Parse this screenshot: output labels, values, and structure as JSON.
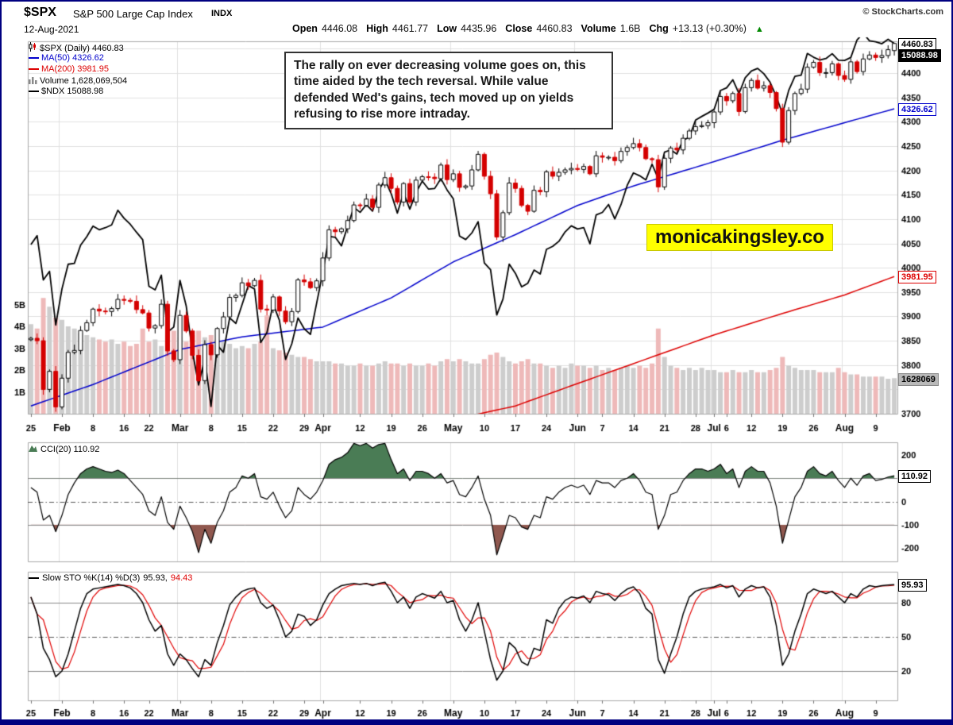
{
  "meta": {
    "symbol": "$SPX",
    "symbol_desc": "S&P 500 Large Cap Index",
    "exchange": "INDX",
    "copyright": "© StockCharts.com",
    "date": "12-Aug-2021"
  },
  "quote": {
    "open_label": "Open",
    "open_value": "4446.08",
    "high_label": "High",
    "high_value": "4461.77",
    "low_label": "Low",
    "low_value": "4435.96",
    "close_label": "Close",
    "close_value": "4460.83",
    "volume_label": "Volume",
    "volume_value": "1.6B",
    "chg_label": "Chg",
    "chg_value": "+13.13 (+0.30%)",
    "arrow": "▲"
  },
  "legend": {
    "spx": "$SPX (Daily) 4460.83",
    "ma50": "MA(50) 4326.62",
    "ma200": "MA(200) 3981.95",
    "volume": "Volume 1,628,069,504",
    "ndx": "$NDX 15088.98"
  },
  "annotation": {
    "text": "The rally on ever decreasing volume goes on, this time aided by the tech reversal. While value defended Wed's gains, tech moved up on yields refusing to rise more intraday."
  },
  "watermark": {
    "text": "monicakingsley.co"
  },
  "boxes": {
    "last": "4460.83",
    "ndx_last": "15088.98",
    "ma50": "4326.62",
    "ma200": "3981.95",
    "volume": "1628069",
    "cci": "110.92",
    "sto": "95.93"
  },
  "cci_panel": {
    "legend": "CCI(20) 110.92"
  },
  "sto_panel": {
    "label": "Slow STO %K(14) %D(3)",
    "k": "95.93,",
    "d": "94.43"
  },
  "colors": {
    "ma50": "#0000cc",
    "ma200": "#dd0000",
    "ndx": "#000000",
    "candle_down": "#d40000",
    "candle_up_fill": "#ffffff",
    "volume_up": "#cdcdcd",
    "volume_down": "#eeb9b9",
    "cci_pos": "#4a7c55",
    "cci_neg": "#90584f",
    "sto_k": "#000000",
    "sto_d": "#e00000",
    "watermark_bg": "#ffff00",
    "chg_arrow": "#008800",
    "border": "#000080",
    "grid": "#e0e0e0"
  },
  "chart_data": {
    "type": "candlestick",
    "title": "$SPX (Daily)",
    "points": 140,
    "first_open": 3852,
    "last_ohlc": {
      "open": 4446.08,
      "high": 4461.77,
      "low": 4435.96,
      "close": 4460.83
    },
    "close": [
      3855,
      3850,
      3750,
      3787,
      3714,
      3773,
      3826,
      3830,
      3871,
      3887,
      3915,
      3911,
      3910,
      3916,
      3935,
      3933,
      3931,
      3914,
      3907,
      3876,
      3881,
      3925,
      3829,
      3811,
      3902,
      3870,
      3820,
      3768,
      3842,
      3821,
      3875,
      3899,
      3939,
      3943,
      3969,
      3963,
      3974,
      3915,
      3913,
      3940,
      3911,
      3889,
      3910,
      3975,
      3971,
      3959,
      3973,
      4020,
      4078,
      4074,
      4080,
      4097,
      4129,
      4128,
      4141,
      4124,
      4170,
      4185,
      4163,
      4135,
      4173,
      4135,
      4180,
      4187,
      4186,
      4183,
      4211,
      4181,
      4193,
      4165,
      4168,
      4201,
      4233,
      4188,
      4152,
      4063,
      4113,
      4174,
      4163,
      4128,
      4116,
      4159,
      4156,
      4197,
      4188,
      4196,
      4201,
      4204,
      4202,
      4208,
      4193,
      4230,
      4227,
      4227,
      4220,
      4239,
      4247,
      4255,
      4247,
      4224,
      4222,
      4166,
      4225,
      4246,
      4242,
      4266,
      4281,
      4290,
      4292,
      4298,
      4320,
      4352,
      4343,
      4358,
      4321,
      4370,
      4385,
      4369,
      4374,
      4360,
      4327,
      4258,
      4323,
      4358,
      4367,
      4412,
      4422,
      4401,
      4401,
      4419,
      4395,
      4387,
      4423,
      4403,
      4429,
      4437,
      4432,
      4436,
      4448,
      4460.83
    ],
    "volume_b": [
      4.1,
      3.9,
      5.3,
      4.9,
      4.4,
      4.3,
      4.0,
      3.9,
      3.7,
      3.6,
      3.5,
      3.4,
      3.3,
      3.4,
      3.2,
      3.3,
      3.1,
      3.2,
      3.9,
      3.3,
      3.4,
      3.1,
      3.6,
      3.8,
      3.5,
      3.3,
      3.6,
      3.8,
      3.5,
      3.6,
      3.4,
      3.3,
      3.2,
      3.0,
      3.1,
      3.0,
      3.2,
      3.3,
      4.5,
      3.0,
      2.9,
      2.8,
      2.7,
      2.6,
      2.6,
      2.5,
      2.4,
      2.4,
      2.4,
      2.3,
      2.3,
      2.2,
      2.2,
      2.3,
      2.2,
      2.2,
      2.3,
      2.4,
      2.3,
      2.3,
      2.2,
      2.3,
      2.2,
      2.2,
      2.3,
      2.2,
      2.4,
      2.5,
      2.4,
      2.5,
      2.4,
      2.3,
      2.3,
      2.5,
      2.7,
      2.8,
      2.6,
      2.4,
      2.3,
      2.4,
      2.5,
      2.3,
      2.3,
      2.2,
      2.1,
      2.2,
      2.1,
      2.3,
      2.2,
      2.2,
      2.1,
      2.2,
      2.0,
      2.1,
      2.0,
      2.1,
      2.2,
      2.1,
      2.2,
      2.1,
      2.3,
      3.9,
      2.6,
      2.2,
      2.1,
      2.0,
      2.1,
      2.0,
      2.1,
      2.0,
      2.0,
      1.9,
      1.9,
      2.0,
      1.9,
      1.9,
      2.0,
      1.9,
      1.9,
      2.0,
      2.1,
      2.6,
      2.2,
      2.1,
      2.0,
      2.0,
      2.0,
      1.9,
      1.9,
      1.9,
      2.1,
      1.9,
      1.8,
      1.8,
      1.7,
      1.7,
      1.7,
      1.7,
      1.6,
      1.628
    ],
    "ndx": [
      13543,
      13611,
      13271,
      13337,
      12925,
      13202,
      13392,
      13399,
      13538,
      13604,
      13685,
      13657,
      13673,
      13694,
      13807,
      13745,
      13699,
      13638,
      13580,
      13223,
      13195,
      13308,
      12870,
      12909,
      13268,
      13072,
      12723,
      12464,
      12668,
      12299,
      12770,
      12715,
      12979,
      12937,
      13082,
      13228,
      13202,
      12790,
      12867,
      13086,
      12962,
      12660,
      12780,
      12979,
      12896,
      12853,
      13092,
      13330,
      13606,
      13599,
      13533,
      13687,
      13829,
      13791,
      13850,
      13800,
      13960,
      14041,
      13935,
      13785,
      13941,
      13815,
      13942,
      14031,
      13970,
      13974,
      14050,
      13963,
      13896,
      13609,
      13582,
      13633,
      13719,
      13402,
      13350,
      13002,
      13124,
      13393,
      13322,
      13218,
      13246,
      13347,
      13317,
      13506,
      13529,
      13568,
      13640,
      13687,
      13663,
      13674,
      13549,
      13771,
      13790,
      13851,
      13741,
      13850,
      13998,
      14094,
      14072,
      14040,
      14161,
      14049,
      14253,
      14271,
      14239,
      14346,
      14368,
      14500,
      14528,
      14554,
      14583,
      14727,
      14748,
      14810,
      14704,
      14826,
      14877,
      14897,
      14856,
      14791,
      14681,
      14549,
      14728,
      14836,
      14845,
      15012,
      14983,
      14962,
      14973,
      15010,
      14960,
      14958,
      14981,
      15116,
      15168,
      15109,
      15102,
      15087,
      15121,
      15088.98
    ],
    "cci": [
      60,
      40,
      -80,
      -60,
      -130,
      -60,
      30,
      80,
      120,
      140,
      150,
      140,
      130,
      125,
      135,
      120,
      90,
      60,
      30,
      -40,
      -60,
      20,
      -90,
      -120,
      -20,
      -70,
      -130,
      -220,
      -120,
      -180,
      -90,
      -40,
      40,
      60,
      110,
      100,
      120,
      20,
      10,
      40,
      -20,
      -70,
      -40,
      60,
      30,
      10,
      40,
      90,
      160,
      180,
      190,
      210,
      250,
      240,
      250,
      230,
      245,
      250,
      180,
      120,
      140,
      90,
      130,
      130,
      120,
      100,
      120,
      80,
      90,
      30,
      20,
      60,
      110,
      10,
      -60,
      -230,
      -150,
      -60,
      -70,
      -110,
      -120,
      -60,
      -70,
      20,
      10,
      40,
      60,
      70,
      60,
      70,
      30,
      90,
      80,
      80,
      60,
      90,
      100,
      120,
      90,
      40,
      30,
      -120,
      -60,
      30,
      40,
      90,
      120,
      140,
      140,
      130,
      140,
      160,
      120,
      140,
      60,
      130,
      150,
      130,
      130,
      80,
      -20,
      -180,
      -80,
      20,
      60,
      130,
      150,
      120,
      110,
      130,
      90,
      60,
      100,
      70,
      110,
      120,
      90,
      95,
      105,
      110.92
    ],
    "sto_k": [
      85,
      70,
      40,
      30,
      15,
      20,
      35,
      55,
      75,
      88,
      92,
      93,
      94,
      95,
      96,
      95,
      93,
      88,
      80,
      65,
      55,
      60,
      35,
      25,
      35,
      30,
      22,
      15,
      30,
      25,
      45,
      60,
      78,
      85,
      90,
      92,
      93,
      80,
      75,
      78,
      65,
      50,
      55,
      70,
      68,
      60,
      65,
      78,
      88,
      92,
      95,
      96,
      97,
      96,
      97,
      95,
      97,
      98,
      90,
      80,
      85,
      75,
      85,
      88,
      86,
      84,
      90,
      80,
      82,
      65,
      55,
      65,
      80,
      55,
      30,
      12,
      20,
      45,
      40,
      28,
      25,
      40,
      38,
      65,
      62,
      75,
      82,
      85,
      84,
      86,
      80,
      90,
      88,
      87,
      82,
      88,
      92,
      94,
      88,
      75,
      70,
      30,
      18,
      35,
      50,
      70,
      85,
      90,
      92,
      93,
      94,
      96,
      93,
      95,
      85,
      92,
      95,
      93,
      94,
      85,
      60,
      25,
      35,
      55,
      70,
      88,
      92,
      90,
      88,
      90,
      85,
      80,
      88,
      85,
      92,
      95,
      94,
      95,
      95.5,
      95.93
    ],
    "sto_k_last": 95.93,
    "sto_d_last": 94.43,
    "cci_last": 110.92,
    "ma50_last": 4326.62,
    "ma200_last": 3981.95,
    "ma50_anchors": [
      [
        0,
        3716
      ],
      [
        10,
        3760
      ],
      [
        24,
        3832
      ],
      [
        34,
        3858
      ],
      [
        47,
        3878
      ],
      [
        58,
        3938
      ],
      [
        68,
        4012
      ],
      [
        78,
        4068
      ],
      [
        88,
        4128
      ],
      [
        97,
        4168
      ],
      [
        110,
        4218
      ],
      [
        121,
        4262
      ],
      [
        131,
        4298
      ],
      [
        139,
        4326.62
      ]
    ],
    "ma200_anchors": [
      [
        48,
        3640
      ],
      [
        68,
        3688
      ],
      [
        78,
        3716
      ],
      [
        88,
        3762
      ],
      [
        99,
        3812
      ],
      [
        110,
        3862
      ],
      [
        121,
        3906
      ],
      [
        131,
        3944
      ],
      [
        139,
        3981.95
      ]
    ],
    "ndx_overlay_display_range": [
      3715,
      4460.83
    ],
    "price_axis": {
      "min": 3700,
      "grid_step": 50,
      "ticks": [
        4400,
        4350,
        4300,
        4250,
        4200,
        4150,
        4100,
        4050,
        4000,
        3950,
        3900,
        3850,
        3800,
        3700
      ]
    },
    "volume_axis": {
      "ticks": [
        {
          "t": "5B",
          "v": 5
        },
        {
          "t": "4B",
          "v": 4
        },
        {
          "t": "3B",
          "v": 3
        },
        {
          "t": "2B",
          "v": 2
        },
        {
          "t": "1B",
          "v": 1
        }
      ]
    },
    "cci_axis": {
      "ticks": [
        200,
        100,
        0,
        -100,
        -200
      ],
      "thresholds": [
        100,
        -100
      ],
      "zero_line": "dash-dot"
    },
    "sto_axis": {
      "ticks": [
        80,
        50,
        20
      ],
      "solid_lines": [
        80,
        20
      ],
      "mid_line": "dash-dot"
    },
    "month_gridline_indices": [
      5,
      24,
      47,
      68,
      88,
      110,
      131
    ],
    "x_labels": [
      {
        "t": "25",
        "i": 0
      },
      {
        "t": "Feb",
        "i": 5,
        "b": true
      },
      {
        "t": "8",
        "i": 10
      },
      {
        "t": "16",
        "i": 15
      },
      {
        "t": "22",
        "i": 19
      },
      {
        "t": "Mar",
        "i": 24,
        "b": true
      },
      {
        "t": "8",
        "i": 29
      },
      {
        "t": "15",
        "i": 34
      },
      {
        "t": "22",
        "i": 39
      },
      {
        "t": "29",
        "i": 44
      },
      {
        "t": "Apr",
        "i": 47,
        "b": true
      },
      {
        "t": "12",
        "i": 53
      },
      {
        "t": "19",
        "i": 58
      },
      {
        "t": "26",
        "i": 63
      },
      {
        "t": "May",
        "i": 68,
        "b": true
      },
      {
        "t": "10",
        "i": 73
      },
      {
        "t": "17",
        "i": 78
      },
      {
        "t": "24",
        "i": 83
      },
      {
        "t": "Jun",
        "i": 88,
        "b": true
      },
      {
        "t": "7",
        "i": 92
      },
      {
        "t": "14",
        "i": 97
      },
      {
        "t": "21",
        "i": 102
      },
      {
        "t": "28",
        "i": 107
      },
      {
        "t": "Jul",
        "i": 110,
        "b": true
      },
      {
        "t": "6",
        "i": 112
      },
      {
        "t": "12",
        "i": 116
      },
      {
        "t": "19",
        "i": 121
      },
      {
        "t": "26",
        "i": 126
      },
      {
        "t": "Aug",
        "i": 131,
        "b": true
      },
      {
        "t": "9",
        "i": 136
      }
    ]
  }
}
